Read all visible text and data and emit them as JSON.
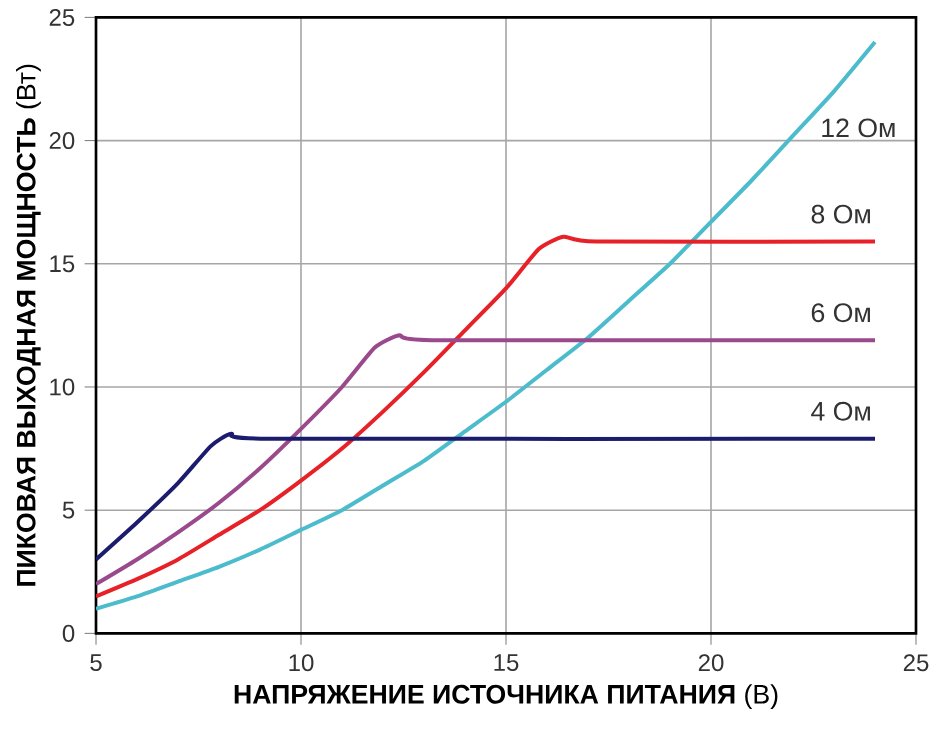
{
  "chart_data": {
    "type": "line",
    "xlabel": "**НАПРЯЖЕНИЕ ИСТОЧНИКА ПИТАНИЯ** (В)",
    "ylabel": "**ПИКОВАЯ ВЫХОДНАЯ МОЩНОСТЬ** (Вт)",
    "xlim": [
      5,
      25
    ],
    "ylim": [
      0,
      25
    ],
    "xticks": [
      5,
      10,
      15,
      20,
      25
    ],
    "yticks": [
      0,
      5,
      10,
      15,
      20,
      25
    ],
    "grid": true,
    "legend": false,
    "marker": "none",
    "line_style": "solid",
    "series": [
      {
        "name": "12 Ом",
        "color": "#4cbccc",
        "x": [
          5,
          6,
          7,
          8,
          9,
          10,
          11,
          12,
          13,
          14,
          15,
          16,
          17,
          18,
          19,
          20,
          21,
          22,
          23,
          24
        ],
        "values": [
          1,
          1.5,
          2.1,
          2.7,
          3.4,
          4.2,
          5,
          6,
          7,
          8.2,
          9.4,
          10.7,
          12,
          13.5,
          15,
          16.7,
          18.4,
          20.2,
          22,
          24
        ]
      },
      {
        "name": "8 Ом",
        "color": "#e62228",
        "x": [
          5,
          6,
          7,
          8,
          9,
          10,
          11,
          12,
          13,
          14,
          15,
          15.8,
          16.4,
          17.2,
          24
        ],
        "values": [
          1.5,
          2.2,
          3,
          4,
          5,
          6.2,
          7.5,
          9,
          10.6,
          12.3,
          14,
          15.6,
          16.1,
          15.9,
          15.9
        ]
      },
      {
        "name": "6 Ом",
        "color": "#9a4a8c",
        "x": [
          5,
          6,
          7,
          8,
          9,
          10,
          11,
          11.8,
          12.4,
          13.2,
          24
        ],
        "values": [
          2,
          3,
          4.1,
          5.3,
          6.7,
          8.3,
          10,
          11.6,
          12.1,
          11.9,
          11.9
        ]
      },
      {
        "name": "4 Ом",
        "color": "#1c1c6e",
        "x": [
          5,
          6,
          7,
          7.8,
          8.3,
          9.2,
          24
        ],
        "values": [
          3,
          4.5,
          6.1,
          7.6,
          8.1,
          7.9,
          7.9
        ]
      }
    ]
  }
}
